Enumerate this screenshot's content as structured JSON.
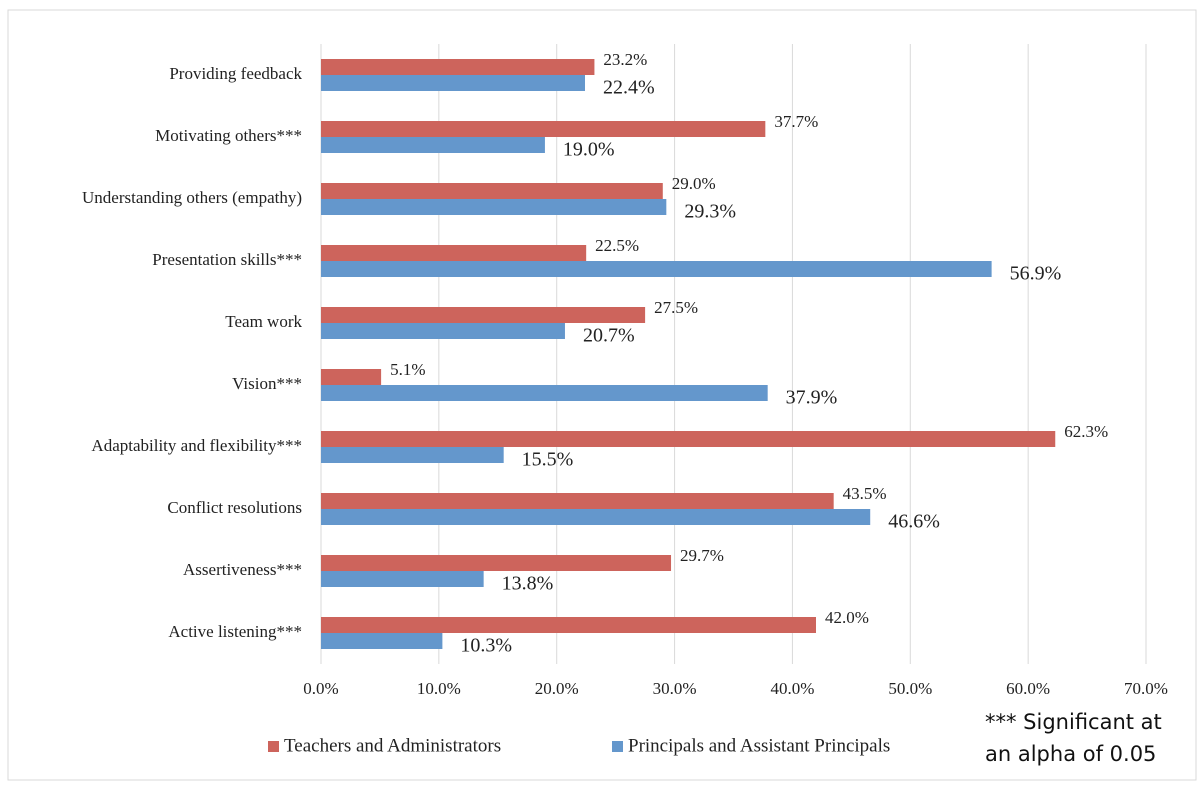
{
  "chart_data": {
    "type": "bar",
    "orientation": "horizontal",
    "categories": [
      "Providing feedback",
      "Motivating others***",
      "Understanding others (empathy)",
      "Presentation skills***",
      "Team work",
      "Vision***",
      "Adaptability and flexibility***",
      "Conflict resolutions",
      "Assertiveness***",
      "Active listening***"
    ],
    "series": [
      {
        "name": "Teachers and Administrators",
        "color": "#cd645c",
        "values": [
          23.2,
          37.7,
          29,
          22.5,
          27.5,
          5.1,
          62.3,
          43.5,
          29.7,
          42
        ],
        "value_labels": [
          "23.2%",
          "37.7%",
          "29.0%",
          "22.5%",
          "27.5%",
          "5.1%",
          "62.3%",
          "43.5%",
          "29.7%",
          "42.0%"
        ]
      },
      {
        "name": "Principals and Assistant Principals",
        "color": "#6497cc",
        "values": [
          22.4,
          19,
          29.3,
          56.9,
          20.7,
          37.9,
          15.5,
          46.6,
          13.8,
          10.3
        ],
        "value_labels": [
          "22.4%",
          "19.0%",
          "29.3%",
          "56.9%",
          "20.7%",
          "37.9%",
          "15.5%",
          "46.6%",
          "13.8%",
          "10.3%"
        ]
      }
    ],
    "xlim": [
      0,
      70
    ],
    "xticks": [
      {
        "value": 0,
        "label": "0.0%"
      },
      {
        "value": 10,
        "label": "10.0%"
      },
      {
        "value": 20,
        "label": "20.0%"
      },
      {
        "value": 30,
        "label": "30.0%"
      },
      {
        "value": 40,
        "label": "40.0%"
      },
      {
        "value": 50,
        "label": "50.0%"
      },
      {
        "value": 60,
        "label": "60.0%"
      },
      {
        "value": 70,
        "label": "70.0%"
      }
    ],
    "grid": true,
    "legend": "bottom",
    "annotation": "*** Significant at an alpha of 0.05"
  }
}
